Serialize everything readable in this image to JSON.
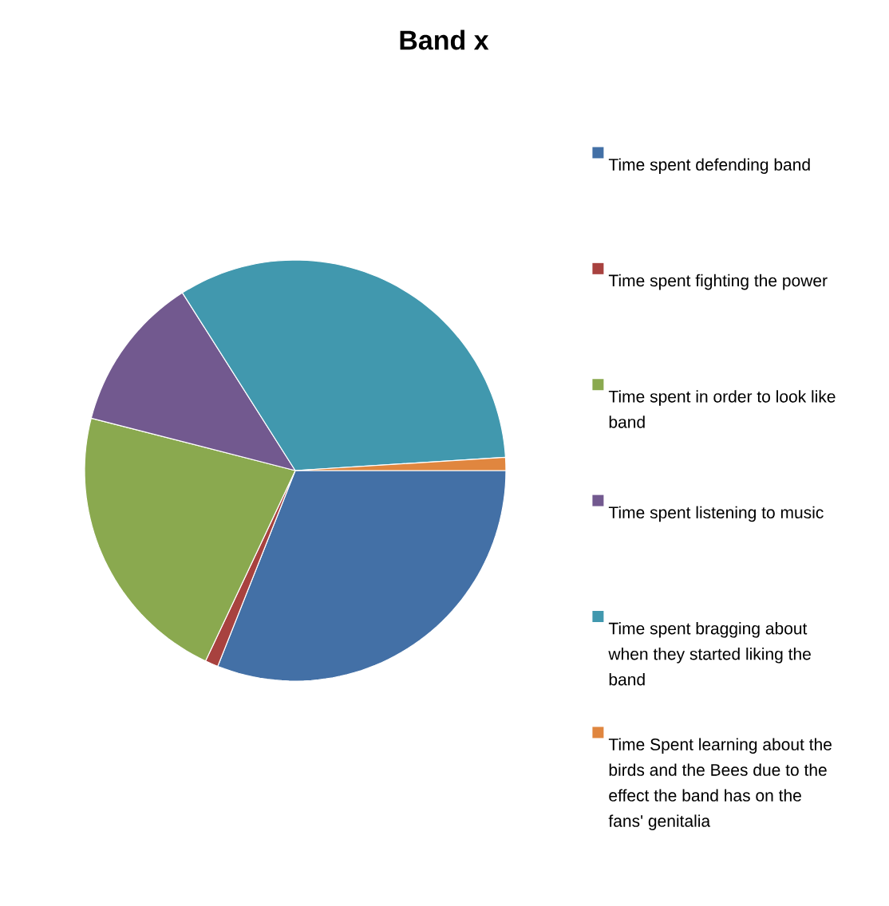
{
  "chart_data": {
    "type": "pie",
    "title": "Band x",
    "categories": [
      "Time spent defending band",
      "Time spent fighting the power",
      "Time spent in order to look like band",
      "Time spent listening to music",
      "Time spent bragging about when they started liking the band",
      "Time Spent learning about the birds and the Bees due to the effect the band has on the fans' genitalia"
    ],
    "values": [
      31,
      1,
      22,
      12,
      33,
      1
    ],
    "colors": [
      "#4370a6",
      "#a8423f",
      "#8aa94f",
      "#72598f",
      "#4198ae",
      "#e0863f"
    ],
    "legend": "right"
  }
}
